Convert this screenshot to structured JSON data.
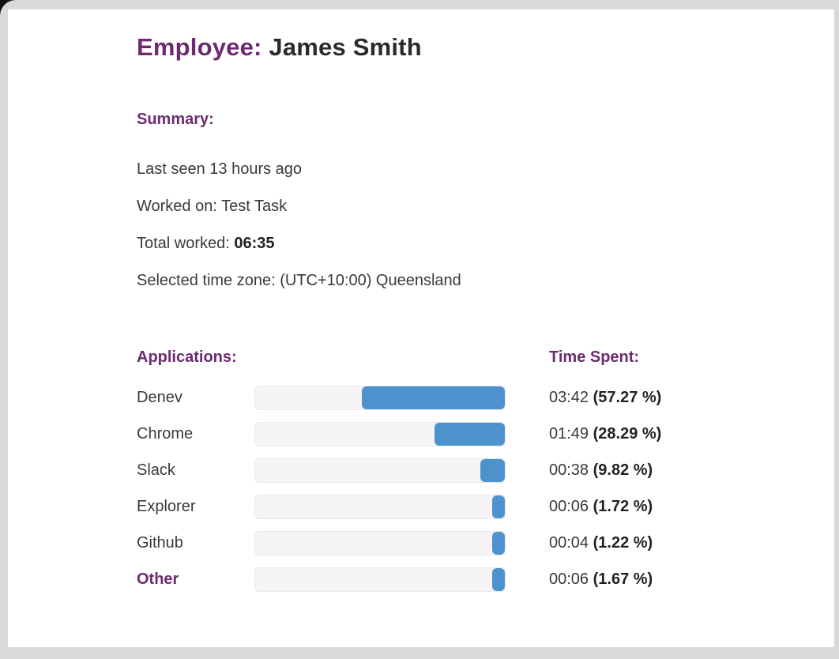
{
  "header": {
    "title_label": "Employee:",
    "title_value": " James Smith"
  },
  "summary": {
    "heading": "Summary:",
    "last_seen": "Last seen 13 hours ago",
    "worked_on": "Worked on: Test Task",
    "total_worked_label": "Total worked: ",
    "total_worked_value": "06:35",
    "timezone": "Selected time zone: (UTC+10:00) Queensland"
  },
  "apps": {
    "heading": "Applications:",
    "time_heading": "Time Spent:",
    "rows": [
      {
        "name": "Denev",
        "time": "03:42",
        "percent": 57.27,
        "percent_label": "(57.27 %)",
        "highlight": false
      },
      {
        "name": "Chrome",
        "time": "01:49",
        "percent": 28.29,
        "percent_label": "(28.29 %)",
        "highlight": false
      },
      {
        "name": "Slack",
        "time": "00:38",
        "percent": 9.82,
        "percent_label": "(9.82 %)",
        "highlight": false
      },
      {
        "name": "Explorer",
        "time": "00:06",
        "percent": 1.72,
        "percent_label": "(1.72 %)",
        "highlight": false
      },
      {
        "name": "Github",
        "time": "00:04",
        "percent": 1.22,
        "percent_label": "(1.22 %)",
        "highlight": false
      },
      {
        "name": "Other",
        "time": "00:06",
        "percent": 1.67,
        "percent_label": "(1.67 %)",
        "highlight": true
      }
    ]
  },
  "chart_data": {
    "type": "bar",
    "orientation": "horizontal",
    "title": "Applications / Time Spent",
    "categories": [
      "Denev",
      "Chrome",
      "Slack",
      "Explorer",
      "Github",
      "Other"
    ],
    "values": [
      57.27,
      28.29,
      9.82,
      1.72,
      1.22,
      1.67
    ],
    "value_labels": [
      "03:42",
      "01:49",
      "00:38",
      "00:06",
      "00:04",
      "00:06"
    ],
    "xlabel": "",
    "ylabel": "",
    "xlim": [
      0,
      100
    ],
    "grid": false,
    "legend": false
  },
  "colors": {
    "accent_purple": "#6c2b70",
    "bar_blue": "#4c93ce",
    "bar_track": "#f7f4f7",
    "text": "#3a3a3a",
    "card_background": "#ffffff",
    "page_background": "#d9d9d9"
  }
}
